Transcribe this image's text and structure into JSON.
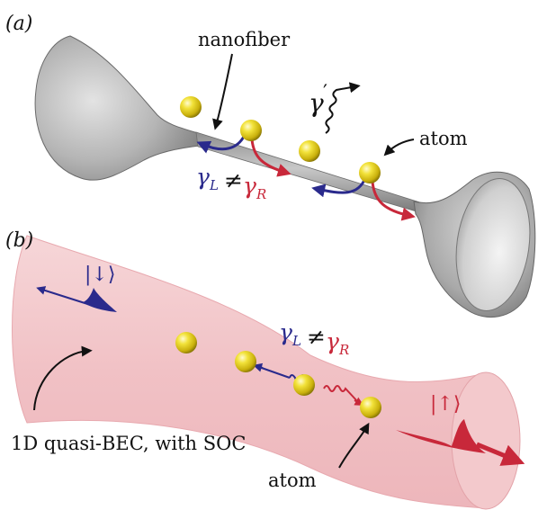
{
  "panel_a": {
    "panel_label": "(a)",
    "nanofiber_label": "nanofiber",
    "atom_label": "atom",
    "emission_symbol": "γ",
    "emission_prime": "′",
    "gamma_L": "γ",
    "gamma_L_sub": "L",
    "neq": "≠",
    "gamma_R": "γ",
    "gamma_R_sub": "R"
  },
  "panel_b": {
    "panel_label": "(b)",
    "spin_down_state": "|↓⟩",
    "spin_up_state": "|↑⟩",
    "gamma_L": "γ",
    "gamma_L_sub": "L",
    "neq": "≠",
    "gamma_R": "γ",
    "gamma_R_sub": "R",
    "bec_label": "1D quasi-BEC, with SOC",
    "atom_label": "atom"
  },
  "colors": {
    "left_emission": "#2a2a8c",
    "right_emission": "#c8283a",
    "fiber": "#9a9a9a",
    "atom": "#e6d21a",
    "bec": "#f2c4c8"
  }
}
